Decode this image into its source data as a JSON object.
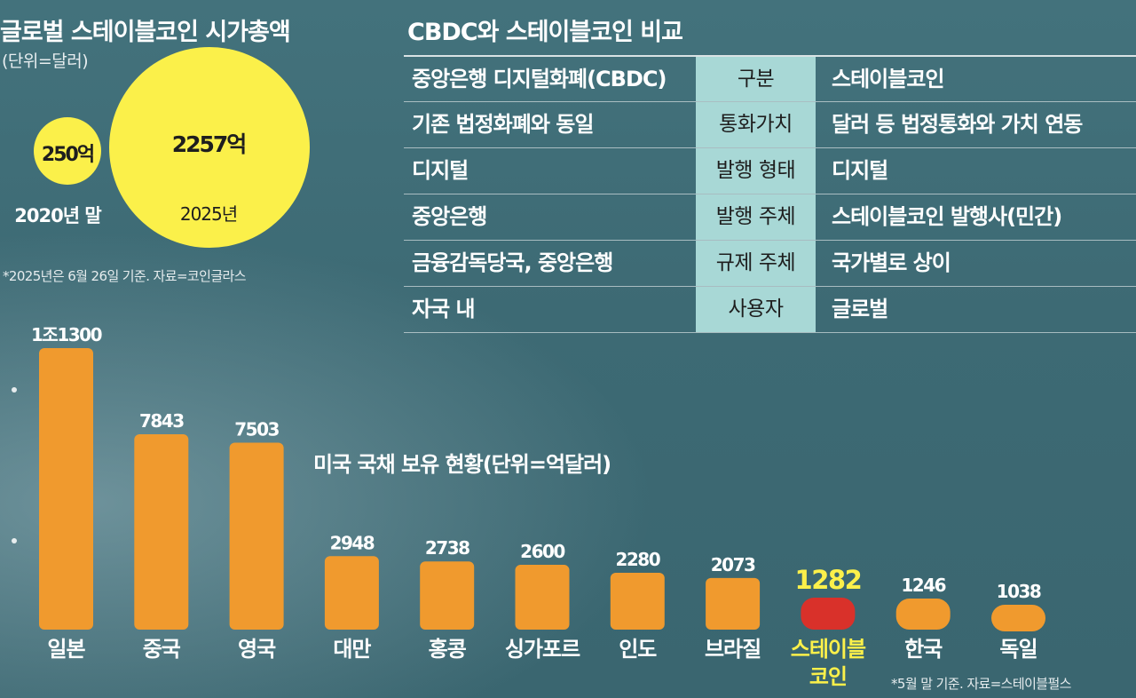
{
  "market_cap": {
    "title": "글로벌 스테이블코인 시가총액",
    "unit": "(단위=달러)",
    "items": [
      {
        "year": "2020년 말",
        "value_label": "250억",
        "value": 250
      },
      {
        "year": "2025년",
        "value_label": "2257억",
        "value": 2257
      }
    ],
    "note": "*2025년은 6월 26일 기준. 자료=코인글라스"
  },
  "comparison": {
    "title": "CBDC와 스테이블코인 비교",
    "rows": [
      {
        "cbdc": "중앙은행 디지털화폐(CBDC)",
        "category": "구분",
        "stablecoin": "스테이블코인"
      },
      {
        "cbdc": "기존 법정화폐와 동일",
        "category": "통화가치",
        "stablecoin": "달러 등 법정통화와 가치 연동"
      },
      {
        "cbdc": "디지털",
        "category": "발행 형태",
        "stablecoin": "디지털"
      },
      {
        "cbdc": "중앙은행",
        "category": "발행 주체",
        "stablecoin": "스테이블코인 발행사(민간)"
      },
      {
        "cbdc": "금융감독당국, 중앙은행",
        "category": "규제 주체",
        "stablecoin": "국가별로 상이"
      },
      {
        "cbdc": "자국 내",
        "category": "사용자",
        "stablecoin": "글로벌"
      }
    ]
  },
  "chart_data": {
    "type": "bar",
    "title": "미국 국채 보유 현황(단위=억달러)",
    "categories": [
      "일본",
      "중국",
      "영국",
      "대만",
      "홍콩",
      "싱가포르",
      "인도",
      "브라질",
      "스테이블\n코인",
      "한국",
      "독일"
    ],
    "values": [
      11300,
      7843,
      7503,
      2948,
      2738,
      2600,
      2280,
      2073,
      1282,
      1246,
      1038
    ],
    "value_labels": [
      "1조1300",
      "7843",
      "7503",
      "2948",
      "2738",
      "2600",
      "2280",
      "2073",
      "1282",
      "1246",
      "1038"
    ],
    "highlight_index": 8,
    "colors": {
      "bar": "#f09a2e",
      "highlight_bar": "#d9312a",
      "highlight_text": "#fbf04a"
    },
    "note": "*5월 말 기준. 자료=스테이블펄스"
  }
}
